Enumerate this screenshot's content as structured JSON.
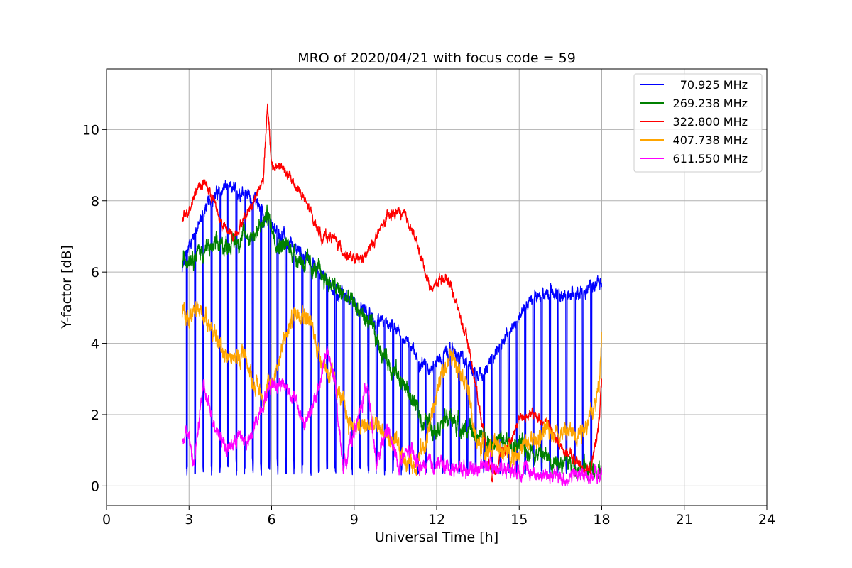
{
  "chart_data": {
    "type": "line",
    "title": "MRO of 2020/04/21 with focus code = 59",
    "xlabel": "Universal Time [h]",
    "ylabel": "Y-factor [dB]",
    "xlim": [
      0,
      24
    ],
    "ylim": [
      -0.55,
      11.7
    ],
    "xticks": [
      0,
      3,
      6,
      9,
      12,
      15,
      18,
      21,
      24
    ],
    "yticks": [
      0,
      2,
      4,
      6,
      8,
      10
    ],
    "grid": true,
    "legend_position": "top-right",
    "series": [
      {
        "name": "70.925 MHz",
        "color": "#0000ff",
        "noise": 0.18,
        "dips": {
          "start": 2.9,
          "end": 17.8,
          "period": 0.3,
          "width": 0.04,
          "depth_to": 0.3
        },
        "x": [
          2.75,
          3.0,
          3.3,
          3.6,
          4.0,
          4.3,
          4.6,
          5.0,
          5.4,
          5.8,
          6.2,
          6.6,
          7.0,
          7.4,
          7.8,
          8.2,
          8.6,
          9.0,
          9.4,
          9.8,
          10.2,
          10.6,
          11.0,
          11.4,
          11.8,
          12.2,
          12.6,
          13.0,
          13.4,
          13.8,
          14.2,
          14.6,
          15.0,
          15.4,
          15.8,
          16.2,
          16.6,
          17.0,
          17.4,
          17.8,
          18.0
        ],
        "y": [
          6.0,
          6.8,
          7.2,
          7.8,
          8.2,
          8.4,
          8.3,
          8.3,
          8.0,
          7.5,
          7.2,
          6.9,
          6.6,
          6.3,
          5.9,
          5.6,
          5.4,
          5.1,
          4.9,
          4.6,
          4.6,
          4.3,
          3.9,
          3.5,
          3.3,
          3.6,
          3.8,
          3.5,
          3.2,
          3.3,
          3.8,
          4.3,
          4.8,
          5.2,
          5.4,
          5.5,
          5.3,
          5.4,
          5.5,
          5.6,
          5.6
        ]
      },
      {
        "name": "269.238 MHz",
        "color": "#008000",
        "noise": 0.25,
        "x": [
          2.75,
          3.0,
          3.5,
          4.0,
          4.5,
          5.0,
          5.5,
          5.85,
          6.2,
          6.6,
          7.0,
          7.5,
          8.0,
          8.5,
          9.0,
          9.5,
          10.0,
          10.5,
          11.0,
          11.5,
          12.0,
          12.5,
          13.0,
          13.5,
          14.0,
          14.5,
          15.0,
          15.5,
          16.0,
          16.5,
          17.0,
          17.5,
          17.9,
          18.0
        ],
        "y": [
          6.2,
          6.5,
          6.6,
          6.7,
          6.8,
          7.0,
          7.1,
          7.6,
          6.9,
          6.7,
          6.4,
          6.1,
          5.8,
          5.4,
          5.1,
          4.6,
          3.8,
          3.2,
          2.6,
          1.8,
          1.7,
          1.9,
          1.6,
          1.4,
          1.3,
          1.2,
          1.1,
          1.0,
          0.8,
          0.7,
          0.6,
          0.5,
          0.3,
          0.5
        ]
      },
      {
        "name": "322.800 MHz",
        "color": "#ff0000",
        "noise": 0.14,
        "x": [
          2.75,
          3.0,
          3.3,
          3.6,
          3.9,
          4.2,
          4.6,
          5.0,
          5.4,
          5.7,
          5.85,
          6.0,
          6.3,
          6.6,
          7.0,
          7.4,
          7.8,
          8.2,
          8.6,
          9.0,
          9.4,
          9.8,
          10.2,
          10.6,
          11.0,
          11.4,
          11.8,
          12.2,
          12.5,
          12.8,
          13.2,
          13.6,
          14.0,
          14.3,
          14.7,
          15.0,
          15.5,
          16.0,
          16.4,
          16.8,
          17.2,
          17.6,
          17.9,
          18.0
        ],
        "y": [
          7.4,
          7.8,
          8.4,
          8.5,
          8.0,
          7.3,
          7.0,
          7.5,
          8.1,
          8.6,
          10.8,
          8.9,
          9.0,
          8.7,
          8.3,
          7.7,
          7.0,
          7.0,
          6.6,
          6.3,
          6.4,
          7.0,
          7.5,
          7.7,
          7.4,
          6.5,
          5.5,
          5.9,
          5.7,
          4.9,
          3.8,
          2.0,
          0.3,
          0.8,
          1.3,
          1.9,
          2.0,
          1.8,
          1.2,
          0.9,
          0.6,
          0.4,
          1.8,
          3.0
        ]
      },
      {
        "name": "407.738 MHz",
        "color": "#ffa500",
        "noise": 0.26,
        "x": [
          2.75,
          3.0,
          3.4,
          3.7,
          4.0,
          4.3,
          4.7,
          5.0,
          5.3,
          5.7,
          6.0,
          6.4,
          6.8,
          7.1,
          7.4,
          7.7,
          8.0,
          8.4,
          8.8,
          9.2,
          9.6,
          10.0,
          10.4,
          10.8,
          11.2,
          11.6,
          12.0,
          12.4,
          12.8,
          13.1,
          13.4,
          13.8,
          14.2,
          14.6,
          15.0,
          15.4,
          15.8,
          16.2,
          16.6,
          17.0,
          17.4,
          17.7,
          17.9,
          18.0
        ],
        "y": [
          4.7,
          4.8,
          4.9,
          4.7,
          4.0,
          3.8,
          3.5,
          3.8,
          3.0,
          2.5,
          2.9,
          3.9,
          4.8,
          5.0,
          4.6,
          3.8,
          3.3,
          2.7,
          1.8,
          1.6,
          1.7,
          1.6,
          1.2,
          0.8,
          0.6,
          1.2,
          2.6,
          3.6,
          3.5,
          2.9,
          1.3,
          1.0,
          1.1,
          0.9,
          1.0,
          1.2,
          1.4,
          1.6,
          1.5,
          1.5,
          1.7,
          2.1,
          2.8,
          4.6
        ]
      },
      {
        "name": "611.550 MHz",
        "color": "#ff00ff",
        "noise": 0.2,
        "x": [
          2.75,
          2.9,
          3.2,
          3.5,
          3.8,
          4.1,
          4.4,
          4.8,
          5.2,
          5.6,
          6.0,
          6.4,
          6.8,
          7.2,
          7.6,
          8.0,
          8.3,
          8.6,
          8.9,
          9.2,
          9.5,
          9.8,
          10.2,
          10.6,
          11.0,
          11.4,
          11.8,
          12.2,
          12.6,
          13.0,
          13.4,
          13.8,
          14.2,
          14.6,
          15.0,
          15.4,
          15.8,
          16.2,
          16.6,
          17.0,
          17.4,
          17.8,
          18.0
        ],
        "y": [
          1.2,
          1.6,
          0.6,
          2.8,
          2.0,
          1.5,
          1.0,
          1.4,
          1.2,
          2.2,
          2.9,
          2.9,
          2.5,
          1.7,
          2.4,
          3.8,
          2.9,
          0.5,
          1.3,
          2.0,
          3.0,
          0.5,
          1.6,
          0.6,
          1.0,
          0.5,
          0.6,
          0.6,
          0.5,
          0.5,
          0.5,
          0.6,
          0.5,
          0.5,
          0.5,
          0.4,
          0.3,
          0.3,
          0.2,
          0.3,
          0.3,
          0.3,
          0.3
        ]
      }
    ]
  }
}
